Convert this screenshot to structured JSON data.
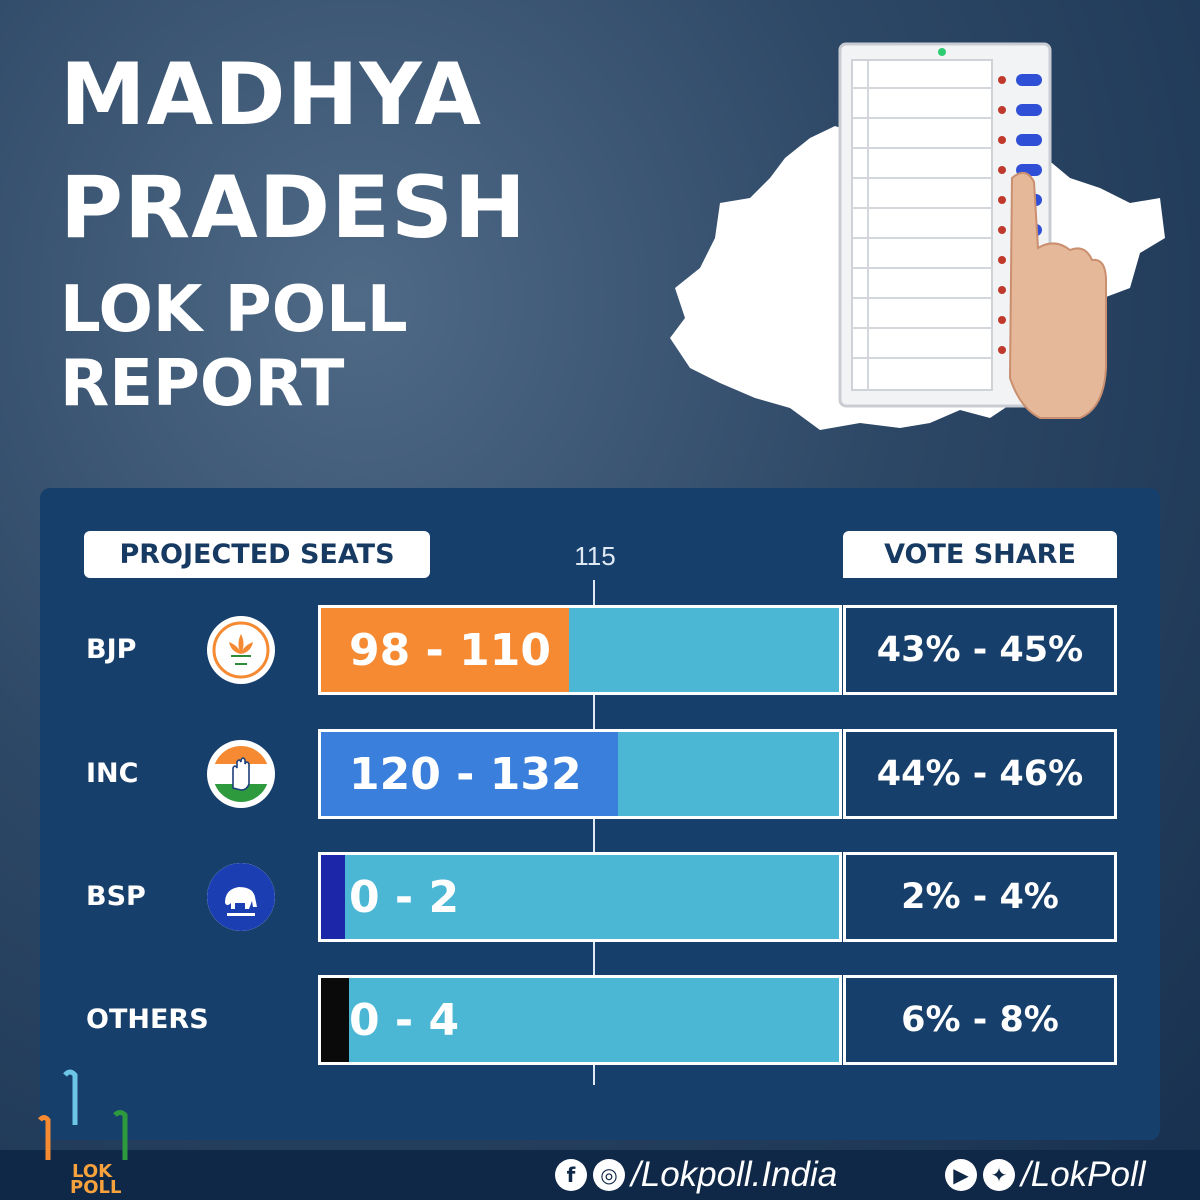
{
  "title": {
    "line1": "MADHYA",
    "line2": "PRADESH",
    "line3": "LOK POLL",
    "line4": "REPORT"
  },
  "headers": {
    "seats": "PROJECTED SEATS",
    "vote": "VOTE SHARE",
    "majority_mark": "115"
  },
  "chart_data": {
    "type": "bar",
    "orientation": "horizontal",
    "categories": [
      "BJP",
      "INC",
      "BSP",
      "OTHERS"
    ],
    "series": [
      {
        "name": "PROJECTED SEATS",
        "values": [
          [
            98,
            110
          ],
          [
            120,
            132
          ],
          [
            0,
            2
          ],
          [
            0,
            4
          ]
        ]
      }
    ],
    "seat_labels": [
      "98 - 110",
      "120 - 132",
      "0 - 2",
      "0 - 4"
    ],
    "vote_share": [
      "43% - 45%",
      "44% - 46%",
      "2% - 4%",
      "6% - 8%"
    ],
    "majority_line": 115,
    "xlim": [
      0,
      230
    ],
    "colors": [
      "#f58a33",
      "#3a7fdc",
      "#1b27a8",
      "#0a0a0a"
    ],
    "track_color": "#4bb7d4"
  },
  "footer": {
    "facebook_instagram_handle": "/Lokpoll.India",
    "youtube_twitter_handle": "/LokPoll",
    "brand_top": "LOK",
    "brand_bottom": "POLL"
  },
  "icons": {
    "bjp": "lotus-icon",
    "inc": "hand-icon",
    "bsp": "elephant-icon",
    "facebook": "facebook-icon",
    "instagram": "instagram-icon",
    "youtube": "youtube-icon",
    "twitter": "twitter-icon"
  }
}
